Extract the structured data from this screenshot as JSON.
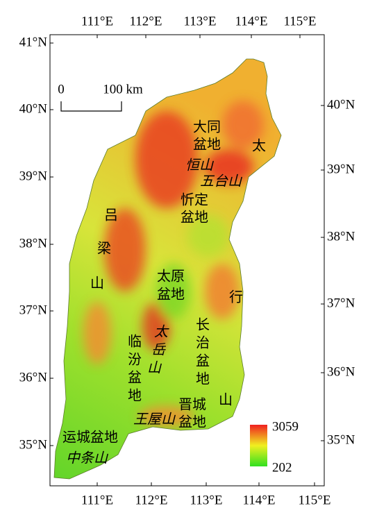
{
  "scale_bar": {
    "start": "0",
    "end": "100 km"
  },
  "top_axis": [
    "111°E",
    "112°E",
    "113°E",
    "114°E",
    "115°E"
  ],
  "bottom_axis": [
    "111°E",
    "112°E",
    "113°E",
    "114°E",
    "115°E"
  ],
  "left_axis": [
    "41°N",
    "40°N",
    "39°N",
    "38°N",
    "37°N",
    "36°N",
    "35°N"
  ],
  "right_axis": [
    "40°N",
    "39°N",
    "38°N",
    "37°N",
    "36°N",
    "35°N"
  ],
  "labels": [
    "大同",
    "盆地",
    "太",
    "恒山",
    "五台山",
    "忻定",
    "盆地",
    "吕",
    "梁",
    "山",
    "太原",
    "盆地",
    "行",
    "长",
    "治",
    "盆",
    "地",
    "太",
    "岳",
    "山",
    "临",
    "汾",
    "盆",
    "地",
    "晋城",
    "盆地",
    "山",
    "王屋山",
    "运城盆地",
    "中条山"
  ],
  "legend": {
    "max": 3059,
    "min": 202
  }
}
